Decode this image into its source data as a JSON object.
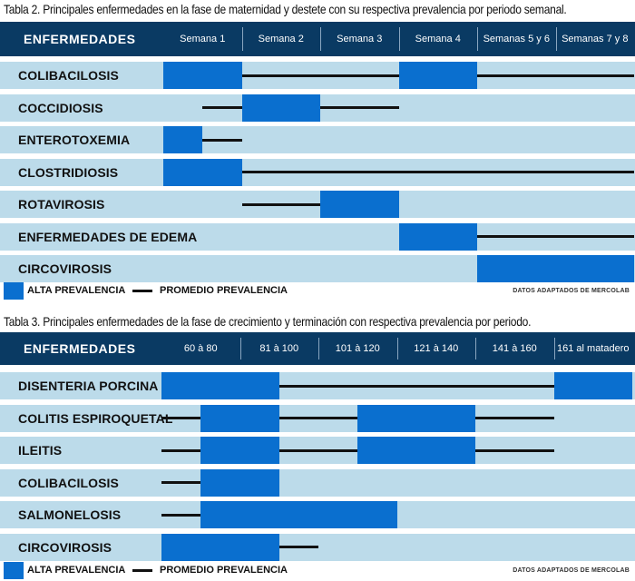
{
  "tables": [
    {
      "caption": "Tabla 2. Principales enfermedades en la fase de maternidad y destete con su respectiva prevalencia por periodo semanal.",
      "header_first": "ENFERMEDADES",
      "columns": [
        "Semana 1",
        "Semana 2",
        "Semana 3",
        "Semana 4",
        "Semanas 5 y 6",
        "Semanas 7 y 8"
      ],
      "rows": [
        {
          "label": "COLIBACILOSIS",
          "high": [
            [
              0,
              1
            ],
            [
              3,
              4
            ]
          ],
          "avg": [
            [
              1,
              3
            ],
            [
              4,
              6
            ]
          ]
        },
        {
          "label": "COCCIDIOSIS",
          "high": [
            [
              1,
              2
            ]
          ],
          "avg": [
            [
              0.5,
              1
            ],
            [
              2,
              3
            ]
          ]
        },
        {
          "label": "ENTEROTOXEMIA",
          "high": [
            [
              0,
              0.5
            ]
          ],
          "avg": [
            [
              0.5,
              1
            ]
          ]
        },
        {
          "label": "CLOSTRIDIOSIS",
          "high": [
            [
              0,
              1
            ]
          ],
          "avg": [
            [
              1,
              6
            ]
          ]
        },
        {
          "label": "ROTAVIROSIS",
          "high": [
            [
              2,
              3
            ]
          ],
          "avg": [
            [
              1,
              2
            ]
          ]
        },
        {
          "label": "ENFERMEDADES DE EDEMA",
          "high": [
            [
              3,
              4
            ]
          ],
          "avg": [
            [
              4,
              6
            ]
          ]
        },
        {
          "label": "CIRCOVIROSIS",
          "high": [
            [
              4,
              6
            ]
          ],
          "avg": []
        }
      ],
      "legend_high": "ALTA PREVALENCIA",
      "legend_avg": "PROMEDIO PREVALENCIA",
      "source": "DATOS ADAPTADOS DE MERCOLAB"
    },
    {
      "caption": "Tabla 3. Principales enfermedades de la fase de crecimiento y terminación con respectiva prevalencia por periodo.",
      "header_first": "ENFERMEDADES",
      "columns": [
        "60 à 80",
        "81 à 100",
        "101 à 120",
        "121 à 140",
        "141 à 160",
        "161 al matadero"
      ],
      "rows": [
        {
          "label": "DISENTERIA PORCINA",
          "high": [
            [
              0,
              1.5
            ],
            [
              5,
              6
            ]
          ],
          "avg": [
            [
              1.5,
              5
            ]
          ]
        },
        {
          "label": "COLITIS ESPIROQUETAL",
          "high": [
            [
              0.5,
              1.5
            ],
            [
              2.5,
              4
            ]
          ],
          "avg": [
            [
              0,
              0.5
            ],
            [
              1.5,
              2.5
            ],
            [
              4,
              5
            ]
          ]
        },
        {
          "label": "ILEITIS",
          "high": [
            [
              0.5,
              1.5
            ],
            [
              2.5,
              4
            ]
          ],
          "avg": [
            [
              0,
              0.5
            ],
            [
              1.5,
              2.5
            ],
            [
              4,
              5
            ]
          ]
        },
        {
          "label": "COLIBACILOSIS",
          "high": [
            [
              0.5,
              1.5
            ]
          ],
          "avg": [
            [
              0,
              0.5
            ]
          ]
        },
        {
          "label": "SALMONELOSIS",
          "high": [
            [
              0.5,
              3
            ]
          ],
          "avg": [
            [
              0,
              0.5
            ]
          ]
        },
        {
          "label": "CIRCOVIROSIS",
          "high": [
            [
              0,
              1.5
            ]
          ],
          "avg": [
            [
              1.5,
              2
            ]
          ]
        }
      ],
      "legend_high": "ALTA PREVALENCIA",
      "legend_avg": "PROMEDIO PREVALENCIA",
      "source": "DATOS ADAPTADOS DE MERCOLAB"
    }
  ],
  "colors": {
    "header": "#0a3a63",
    "row": "#bcdbea",
    "high": "#0a6fcf",
    "avg": "#111111"
  }
}
